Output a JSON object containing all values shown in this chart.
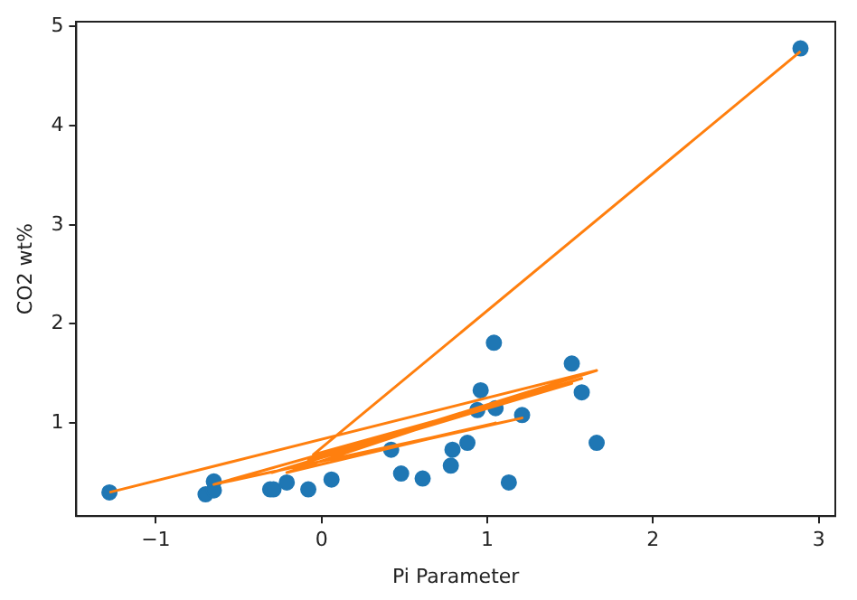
{
  "chart_data": {
    "type": "scatter",
    "xlabel": "Pi Parameter",
    "ylabel": "CO2 wt%",
    "xlim": [
      -1.48,
      3.1
    ],
    "ylim": [
      0.06,
      5.05
    ],
    "xticks": [
      {
        "value": -1,
        "label": "−1"
      },
      0,
      1,
      2,
      3
    ],
    "yticks": [
      1,
      2,
      3,
      4,
      5
    ],
    "grid": false,
    "legend": false,
    "marker": "circle",
    "series": [
      {
        "color": "#1f77b4",
        "x": [
          -1.28,
          -0.7,
          -0.65,
          -0.65,
          -0.31,
          -0.29,
          -0.21,
          -0.08,
          0.06,
          0.42,
          0.48,
          0.61,
          0.78,
          0.79,
          0.88,
          0.94,
          0.96,
          1.04,
          1.05,
          1.13,
          1.21,
          1.51,
          1.57,
          1.66,
          2.89
        ],
        "values": [
          0.3,
          0.28,
          0.32,
          0.41,
          0.33,
          0.33,
          0.4,
          0.33,
          0.43,
          0.73,
          0.49,
          0.44,
          0.57,
          0.73,
          0.8,
          1.13,
          1.33,
          1.81,
          1.15,
          0.4,
          1.08,
          1.6,
          1.31,
          0.8,
          4.78
        ]
      },
      {
        "type": "line",
        "marker": "none",
        "color": "#ff7f0e",
        "x": [
          -1.28,
          1.66,
          -0.08,
          1.57,
          -0.3,
          1.51,
          -0.65,
          1.21,
          0.06,
          1.05,
          -0.21,
          0.96,
          -0.05,
          2.89
        ],
        "values": [
          0.3,
          1.53,
          0.62,
          1.45,
          0.5,
          1.4,
          0.38,
          1.05,
          0.62,
          1.0,
          0.5,
          1.15,
          0.68,
          4.75
        ]
      }
    ]
  }
}
